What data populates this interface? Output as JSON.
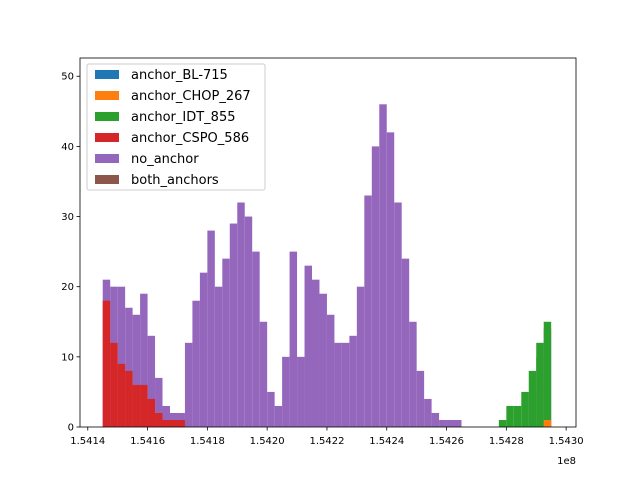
{
  "chart_data": {
    "type": "histogram",
    "bins": [
      154145000,
      154147500,
      154150000,
      154152500,
      154155000,
      154157500,
      154160000,
      154162500,
      154165000,
      154167500,
      154170000,
      154172500,
      154175000,
      154177500,
      154180000,
      154182500,
      154185000,
      154187500,
      154190000,
      154192500,
      154195000,
      154197500,
      154200000,
      154202500,
      154205000,
      154207500,
      154210000,
      154212500,
      154215000,
      154217500,
      154220000,
      154222500,
      154225000,
      154227500,
      154230000,
      154232500,
      154235000,
      154237500,
      154240000,
      154242500,
      154245000,
      154247500,
      154250000,
      154252500,
      154255000,
      154257500,
      154260000,
      154262500,
      154265000,
      154267500,
      154270000,
      154272500,
      154275000,
      154277500,
      154280000,
      154282500,
      154285000,
      154287500,
      154290000,
      154292500,
      154295000
    ],
    "series": [
      {
        "name": "anchor_BL-715",
        "color": "#1f77b4",
        "values": [
          0,
          0,
          0,
          0,
          0,
          0,
          0,
          0,
          0,
          0,
          0,
          0,
          0,
          0,
          0,
          0,
          0,
          0,
          0,
          0,
          0,
          0,
          0,
          0,
          0,
          0,
          0,
          0,
          0,
          0,
          0,
          0,
          0,
          0,
          0,
          0,
          0,
          0,
          0,
          0,
          0,
          0,
          0,
          0,
          0,
          0,
          0,
          0,
          0,
          0,
          0,
          0,
          0,
          0,
          0,
          0,
          0,
          0,
          0,
          0
        ]
      },
      {
        "name": "anchor_CHOP_267",
        "color": "#ff7f0e",
        "values": [
          0,
          0,
          0,
          0,
          0,
          0,
          0,
          0,
          0,
          0,
          0,
          0,
          0,
          0,
          0,
          0,
          0,
          0,
          0,
          0,
          0,
          0,
          0,
          0,
          0,
          0,
          0,
          0,
          0,
          0,
          0,
          0,
          0,
          0,
          0,
          0,
          0,
          0,
          0,
          0,
          0,
          0,
          0,
          0,
          0,
          0,
          0,
          0,
          0,
          0,
          0,
          0,
          0,
          0,
          0,
          0,
          0,
          0,
          0,
          1
        ]
      },
      {
        "name": "anchor_IDT_855",
        "color": "#2ca02c",
        "values": [
          0,
          0,
          0,
          0,
          0,
          0,
          0,
          0,
          0,
          0,
          0,
          0,
          0,
          0,
          0,
          0,
          0,
          0,
          0,
          0,
          0,
          0,
          0,
          0,
          0,
          0,
          0,
          0,
          0,
          0,
          0,
          0,
          0,
          0,
          0,
          0,
          0,
          0,
          0,
          0,
          0,
          0,
          0,
          0,
          0,
          0,
          0,
          0,
          0,
          0,
          0,
          0,
          0,
          1,
          3,
          3,
          5,
          8,
          12,
          15
        ]
      },
      {
        "name": "anchor_CSPO_586",
        "color": "#d62728",
        "values": [
          18,
          12,
          9,
          8,
          6,
          6,
          4,
          2,
          1,
          1,
          1,
          0,
          0,
          0,
          0,
          0,
          0,
          0,
          0,
          0,
          0,
          0,
          0,
          0,
          0,
          0,
          0,
          0,
          0,
          0,
          0,
          0,
          0,
          0,
          0,
          0,
          0,
          0,
          0,
          0,
          0,
          0,
          0,
          0,
          0,
          0,
          0,
          0,
          0,
          0,
          0,
          0,
          0,
          0,
          0,
          0,
          0,
          0,
          0,
          0
        ]
      },
      {
        "name": "no_anchor",
        "color": "#9467bd",
        "values": [
          21,
          20,
          20,
          17,
          16,
          19,
          13,
          7,
          3,
          2,
          2,
          12,
          18,
          22,
          28,
          20,
          24,
          29,
          32,
          30,
          25,
          15,
          5,
          3,
          10,
          25,
          10,
          23,
          21,
          19,
          16,
          12,
          12,
          13,
          20,
          33,
          40,
          46,
          42,
          32,
          24,
          15,
          8,
          4,
          2,
          1,
          1,
          1,
          0,
          0,
          0,
          0,
          0,
          0,
          0,
          0,
          0,
          5,
          10,
          14
        ]
      },
      {
        "name": "both_anchors",
        "color": "#8c564b",
        "values": [
          0,
          0,
          0,
          0,
          0,
          0,
          0,
          0,
          0,
          0,
          0,
          0,
          0,
          0,
          0,
          0,
          0,
          0,
          0,
          0,
          0,
          0,
          0,
          0,
          0,
          0,
          0,
          0,
          0,
          0,
          0,
          0,
          0,
          0,
          0,
          0,
          0,
          0,
          0,
          0,
          0,
          0,
          0,
          0,
          0,
          0,
          0,
          0,
          0,
          0,
          0,
          0,
          0,
          0,
          0,
          0,
          0,
          0,
          0,
          0
        ]
      }
    ],
    "xlim": [
      154137400,
      154303300
    ],
    "ylim": [
      0,
      52.6
    ],
    "xticks": [
      {
        "value": 154140000,
        "label": "1.5414"
      },
      {
        "value": 154160000,
        "label": "1.5416"
      },
      {
        "value": 154180000,
        "label": "1.5418"
      },
      {
        "value": 154200000,
        "label": "1.5420"
      },
      {
        "value": 154220000,
        "label": "1.5422"
      },
      {
        "value": 154240000,
        "label": "1.5424"
      },
      {
        "value": 154260000,
        "label": "1.5426"
      },
      {
        "value": 154280000,
        "label": "1.5428"
      },
      {
        "value": 154300000,
        "label": "1.5430"
      }
    ],
    "yticks": [
      0,
      10,
      20,
      30,
      40,
      50
    ],
    "x_offset": "1e8",
    "legend": "upper left"
  }
}
